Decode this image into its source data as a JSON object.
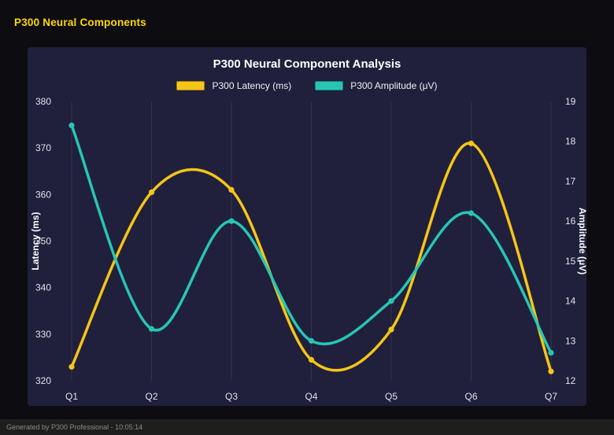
{
  "header": {
    "title": "P300 Neural Components"
  },
  "footer": {
    "text": "Generated by P300 Professional - 10:05:14"
  },
  "chart_data": {
    "type": "line",
    "title": "P300 Neural Component Analysis",
    "categories": [
      "Q1",
      "Q2",
      "Q3",
      "Q4",
      "Q5",
      "Q6",
      "Q7"
    ],
    "series": [
      {
        "key": "latency",
        "name": "P300 Latency (ms)",
        "axis": "left",
        "color": "#f5c518",
        "values": [
          323,
          360.5,
          361,
          324.5,
          331,
          371,
          322
        ]
      },
      {
        "key": "amplitude",
        "name": "P300 Amplitude (μV)",
        "axis": "right",
        "color": "#28c5b5",
        "values": [
          18.4,
          13.3,
          16.0,
          13.0,
          14.0,
          16.2,
          12.7
        ]
      }
    ],
    "left_axis": {
      "label": "Latency (ms)",
      "min": 320,
      "max": 380,
      "step": 10
    },
    "right_axis": {
      "label": "Amplitude (μV)",
      "min": 12,
      "max": 19,
      "step": 1
    },
    "grid": "vertical",
    "legend_position": "top",
    "background_color": "#20203c",
    "page_background": "#0d0d11",
    "title_color": "#ffd700"
  }
}
